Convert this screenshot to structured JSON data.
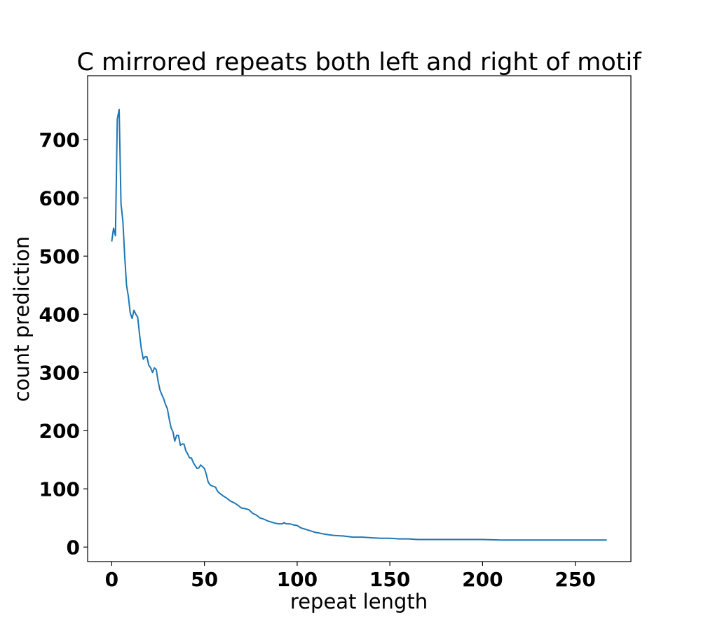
{
  "chart_data": {
    "type": "line",
    "title": "C mirrored repeats both left and right of motif",
    "xlabel": "repeat length",
    "ylabel": "count prediction",
    "xlim": [
      -13,
      280
    ],
    "ylim": [
      -25,
      810
    ],
    "xticks": [
      0,
      50,
      100,
      150,
      200,
      250
    ],
    "yticks": [
      0,
      100,
      200,
      300,
      400,
      500,
      600,
      700
    ],
    "grid": false,
    "series": [
      {
        "color": "#1f77b4",
        "x": [
          0,
          1,
          2,
          3,
          4,
          5,
          6,
          7,
          8,
          9,
          10,
          11,
          12,
          13,
          14,
          15,
          16,
          17,
          18,
          19,
          20,
          21,
          22,
          23,
          24,
          25,
          26,
          27,
          28,
          29,
          30,
          31,
          32,
          33,
          34,
          35,
          36,
          37,
          38,
          39,
          40,
          41,
          42,
          43,
          44,
          45,
          46,
          47,
          48,
          49,
          50,
          51,
          52,
          53,
          54,
          55,
          56,
          57,
          58,
          60,
          62,
          64,
          66,
          68,
          70,
          72,
          74,
          76,
          78,
          80,
          82,
          84,
          86,
          88,
          90,
          92,
          93,
          94,
          96,
          98,
          100,
          102,
          104,
          106,
          108,
          110,
          112,
          115,
          120,
          125,
          130,
          135,
          140,
          145,
          150,
          155,
          160,
          165,
          170,
          180,
          190,
          200,
          210,
          220,
          230,
          240,
          250,
          260,
          267
        ],
        "values": [
          525,
          548,
          535,
          735,
          752,
          590,
          560,
          500,
          450,
          430,
          402,
          393,
          407,
          400,
          395,
          365,
          340,
          323,
          327,
          327,
          312,
          308,
          300,
          308,
          305,
          285,
          270,
          262,
          255,
          245,
          238,
          220,
          205,
          198,
          182,
          192,
          192,
          175,
          177,
          177,
          165,
          160,
          153,
          153,
          145,
          140,
          135,
          136,
          141,
          138,
          135,
          125,
          112,
          107,
          105,
          104,
          103,
          96,
          93,
          88,
          84,
          79,
          76,
          72,
          67,
          66,
          64,
          58,
          55,
          50,
          48,
          45,
          43,
          41,
          40,
          40,
          42,
          40,
          40,
          38,
          37,
          33,
          31,
          29,
          27,
          25,
          24,
          22,
          20,
          19,
          17,
          17,
          16,
          15,
          15,
          14,
          14,
          13,
          13,
          13,
          13,
          13,
          12,
          12,
          12,
          12,
          12,
          12,
          12
        ]
      }
    ]
  }
}
